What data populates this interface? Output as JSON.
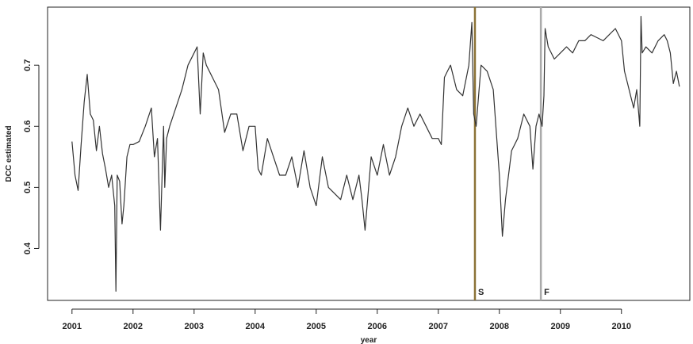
{
  "chart_data": {
    "type": "line",
    "xlabel": "year",
    "ylabel": "DCC estimated",
    "xlim": [
      2000.6,
      2011.12
    ],
    "ylim": [
      0.315,
      0.795
    ],
    "x_ticks": [
      2001,
      2002,
      2003,
      2004,
      2005,
      2006,
      2007,
      2008,
      2009,
      2010
    ],
    "x_tick_labels": [
      "2001",
      "2002",
      "2003",
      "2004",
      "2005",
      "2006",
      "2007",
      "2008",
      "2009",
      "2010"
    ],
    "y_ticks": [
      0.4,
      0.5,
      0.6,
      0.7
    ],
    "y_tick_labels": [
      "0.4",
      "0.5",
      "0.6",
      "0.7"
    ],
    "grid": false,
    "line_color": "#333333",
    "series": [
      {
        "x": [
          2001.0,
          2001.05,
          2001.1,
          2001.15,
          2001.2,
          2001.25,
          2001.3,
          2001.35,
          2001.4,
          2001.45,
          2001.5,
          2001.55,
          2001.6,
          2001.65,
          2001.7,
          2001.72,
          2001.74,
          2001.78,
          2001.82,
          2001.85,
          2001.9,
          2001.95,
          2002.0,
          2002.1,
          2002.2,
          2002.3,
          2002.35,
          2002.4,
          2002.45,
          2002.5,
          2002.52,
          2002.55,
          2002.6,
          2002.7,
          2002.8,
          2002.9,
          2003.0,
          2003.05,
          2003.1,
          2003.15,
          2003.2,
          2003.3,
          2003.4,
          2003.5,
          2003.6,
          2003.7,
          2003.8,
          2003.9,
          2004.0,
          2004.05,
          2004.1,
          2004.2,
          2004.3,
          2004.4,
          2004.5,
          2004.6,
          2004.7,
          2004.8,
          2004.9,
          2005.0,
          2005.1,
          2005.2,
          2005.3,
          2005.4,
          2005.5,
          2005.6,
          2005.7,
          2005.75,
          2005.8,
          2005.9,
          2006.0,
          2006.1,
          2006.2,
          2006.3,
          2006.4,
          2006.5,
          2006.6,
          2006.7,
          2006.8,
          2006.9,
          2007.0,
          2007.05,
          2007.1,
          2007.15,
          2007.2,
          2007.3,
          2007.4,
          2007.5,
          2007.55,
          2007.58,
          2007.62,
          2007.7,
          2007.8,
          2007.9,
          2008.0,
          2008.05,
          2008.1,
          2008.2,
          2008.3,
          2008.4,
          2008.5,
          2008.55,
          2008.6,
          2008.65,
          2008.7,
          2008.73,
          2008.75,
          2008.8,
          2008.9,
          2009.0,
          2009.1,
          2009.2,
          2009.3,
          2009.4,
          2009.5,
          2009.6,
          2009.7,
          2009.8,
          2009.9,
          2010.0,
          2010.05,
          2010.1,
          2010.15,
          2010.2,
          2010.25,
          2010.3,
          2010.32,
          2010.34,
          2010.4,
          2010.5,
          2010.6,
          2010.7,
          2010.75,
          2010.8,
          2010.85,
          2010.9,
          2010.95
        ],
        "y": [
          0.575,
          0.52,
          0.495,
          0.57,
          0.64,
          0.685,
          0.62,
          0.61,
          0.56,
          0.6,
          0.555,
          0.53,
          0.5,
          0.52,
          0.47,
          0.33,
          0.52,
          0.51,
          0.44,
          0.47,
          0.55,
          0.57,
          0.57,
          0.575,
          0.6,
          0.63,
          0.55,
          0.58,
          0.43,
          0.6,
          0.5,
          0.58,
          0.6,
          0.63,
          0.66,
          0.7,
          0.72,
          0.73,
          0.62,
          0.72,
          0.7,
          0.68,
          0.66,
          0.59,
          0.62,
          0.62,
          0.56,
          0.6,
          0.6,
          0.53,
          0.52,
          0.58,
          0.55,
          0.52,
          0.52,
          0.55,
          0.5,
          0.56,
          0.5,
          0.47,
          0.55,
          0.5,
          0.49,
          0.48,
          0.52,
          0.48,
          0.52,
          0.48,
          0.43,
          0.55,
          0.52,
          0.57,
          0.52,
          0.55,
          0.6,
          0.63,
          0.6,
          0.62,
          0.6,
          0.58,
          0.58,
          0.57,
          0.68,
          0.69,
          0.7,
          0.66,
          0.65,
          0.7,
          0.77,
          0.62,
          0.6,
          0.7,
          0.69,
          0.66,
          0.52,
          0.42,
          0.48,
          0.56,
          0.58,
          0.62,
          0.6,
          0.53,
          0.6,
          0.62,
          0.6,
          0.65,
          0.76,
          0.73,
          0.71,
          0.72,
          0.73,
          0.72,
          0.74,
          0.74,
          0.75,
          0.745,
          0.74,
          0.75,
          0.76,
          0.74,
          0.69,
          0.67,
          0.65,
          0.63,
          0.66,
          0.6,
          0.78,
          0.72,
          0.73,
          0.72,
          0.74,
          0.75,
          0.74,
          0.72,
          0.67,
          0.69,
          0.665
        ]
      }
    ],
    "vertical_lines": [
      {
        "x": 2007.6,
        "label": "S",
        "color": "#8B7236"
      },
      {
        "x": 2008.68,
        "label": "F",
        "color": "#aaaaaa"
      }
    ]
  }
}
